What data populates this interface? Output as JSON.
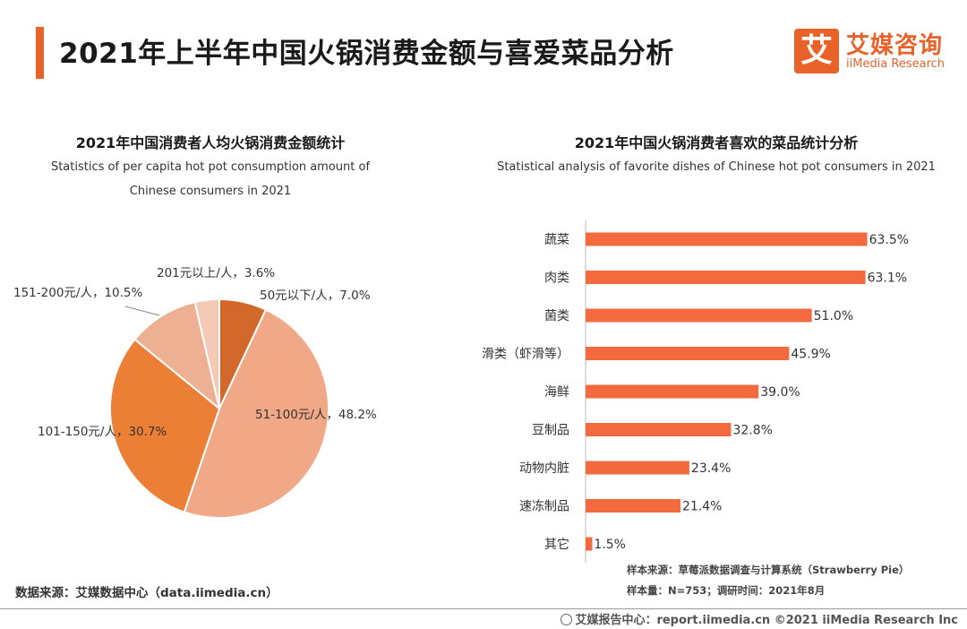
{
  "header": {
    "title": "2021年上半年中国火锅消费金额与喜爱菜品分析",
    "logo_mark": "艾",
    "logo_cn": "艾媒咨询",
    "logo_en": "iiMedia Research",
    "accent_color": "#e8622a"
  },
  "left_panel": {
    "title": "2021年中国消费者人均火锅消费金额统计",
    "subtitle_line1": "Statistics of per capita hot pot consumption amount of",
    "subtitle_line2": "Chinese consumers in 2021"
  },
  "right_panel": {
    "title": "2021年中国火锅消费者喜欢的菜品统计分析",
    "subtitle": "Statistical analysis of favorite dishes of Chinese hot pot consumers in 2021"
  },
  "chart_data": [
    {
      "type": "pie",
      "title": "2021年中国消费者人均火锅消费金额统计",
      "slices": [
        {
          "label": "50元以下/人",
          "value": 7.0,
          "display": "7.0%",
          "color": "#d2692a"
        },
        {
          "label": "51-100元/人",
          "value": 48.2,
          "display": "48.2%",
          "color": "#f0a887"
        },
        {
          "label": "101-150元/人",
          "value": 30.7,
          "display": "30.7%",
          "color": "#ea7f35"
        },
        {
          "label": "151-200元/人",
          "value": 10.5,
          "display": "10.5%",
          "color": "#eeb092"
        },
        {
          "label": "201元以上/人",
          "value": 3.6,
          "display": "3.6%",
          "color": "#f4c9b6"
        }
      ]
    },
    {
      "type": "bar",
      "orientation": "horizontal",
      "title": "2021年中国火锅消费者喜欢的菜品统计分析",
      "categories": [
        "蔬菜",
        "肉类",
        "菌类",
        "滑类（虾滑等）",
        "海鲜",
        "豆制品",
        "动物内脏",
        "速冻制品",
        "其它"
      ],
      "values": [
        63.5,
        63.1,
        51.0,
        45.9,
        39.0,
        32.8,
        23.4,
        21.4,
        1.5
      ],
      "value_labels": [
        "63.5%",
        "63.1%",
        "51.0%",
        "45.9%",
        "39.0%",
        "32.8%",
        "23.4%",
        "21.4%",
        "1.5%"
      ],
      "unit": "%",
      "xlim": [
        0,
        65
      ],
      "bar_color": "#f26a3d"
    }
  ],
  "notes": {
    "sample_source": "样本来源：草莓派数据调查与计算系统（Strawberry Pie）",
    "sample_size": "样本量：N=753；调研时间：2021年8月",
    "data_source": "数据来源：艾媒数据中心（data.iimedia.cn）",
    "footer": "艾媒报告中心：report.iimedia.cn    ©2021  iiMedia Research  Inc"
  }
}
